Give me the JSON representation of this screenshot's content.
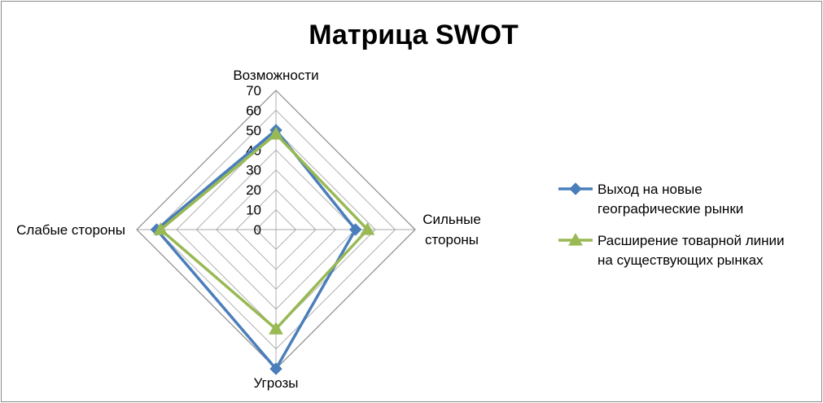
{
  "chart_data": {
    "type": "radar",
    "title": "Матрица SWOT",
    "categories": [
      "Возможности",
      "Сильные стороны",
      "Угрозы",
      "Слабые стороны"
    ],
    "category_lines": [
      [
        "Возможности"
      ],
      [
        "Сильные",
        "стороны"
      ],
      [
        "Угрозы"
      ],
      [
        "Слабые стороны"
      ]
    ],
    "ylim": [
      0,
      70
    ],
    "ticks": [
      0,
      10,
      20,
      30,
      40,
      50,
      60,
      70
    ],
    "grid": true,
    "legend_position": "right",
    "series": [
      {
        "name": "Выход на новые географические рынки",
        "name_lines": [
          "Выход на новые",
          "географические рынки"
        ],
        "values": [
          50,
          40,
          70,
          60
        ],
        "color": "#4a7ebb",
        "marker": "diamond"
      },
      {
        "name": "Расширение товарной линии на существующих рынках",
        "name_lines": [
          "Расширение товарной линии",
          "на существующих рынках"
        ],
        "values": [
          48,
          46,
          50,
          58
        ],
        "color": "#98b954",
        "marker": "triangle"
      }
    ]
  }
}
